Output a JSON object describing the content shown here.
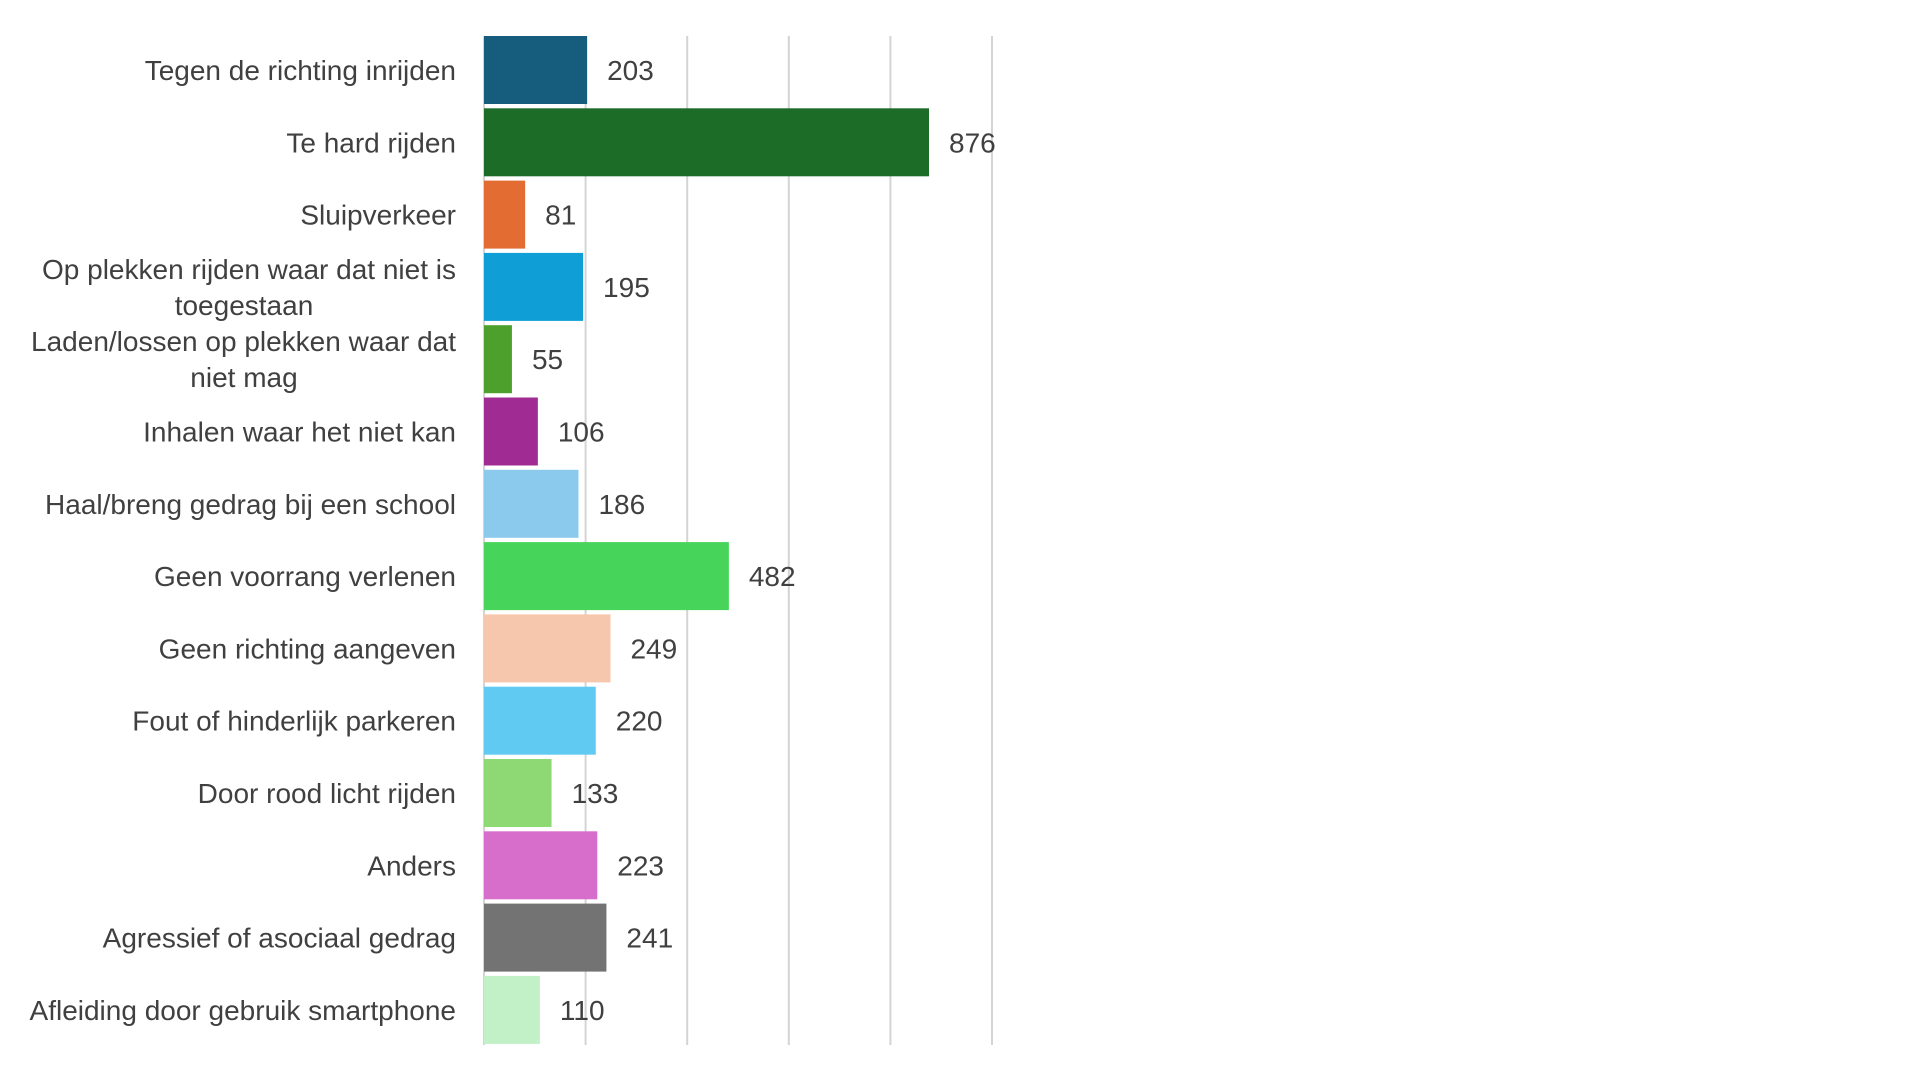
{
  "chart_data": {
    "type": "bar",
    "orientation": "horizontal",
    "title": "",
    "xlabel": "",
    "ylabel": "",
    "xlim": [
      0,
      1000
    ],
    "grid": true,
    "legend": "none",
    "categories": [
      [
        "Tegen de richting inrijden"
      ],
      [
        "Te hard rijden"
      ],
      [
        "Sluipverkeer"
      ],
      [
        "Op plekken rijden waar dat niet is",
        "toegestaan"
      ],
      [
        "Laden/lossen op plekken waar dat",
        "niet mag"
      ],
      [
        "Inhalen waar het niet kan"
      ],
      [
        "Haal/breng gedrag bij een school"
      ],
      [
        "Geen voorrang verlenen"
      ],
      [
        "Geen richting aangeven"
      ],
      [
        "Fout of hinderlijk parkeren"
      ],
      [
        "Door rood licht rijden"
      ],
      [
        "Anders"
      ],
      [
        "Agressief of asociaal gedrag"
      ],
      [
        "Afleiding door gebruik smartphone"
      ]
    ],
    "values": [
      203,
      876,
      81,
      195,
      55,
      106,
      186,
      482,
      249,
      220,
      133,
      223,
      241,
      110
    ],
    "colors": [
      "#165c7d",
      "#1c6b27",
      "#e36c33",
      "#0f9ed5",
      "#4da02c",
      "#a02b93",
      "#8ccaed",
      "#47d45a",
      "#f6c6ad",
      "#60caf3",
      "#8ed973",
      "#d86ecc",
      "#737373",
      "#c2f1c8"
    ]
  }
}
